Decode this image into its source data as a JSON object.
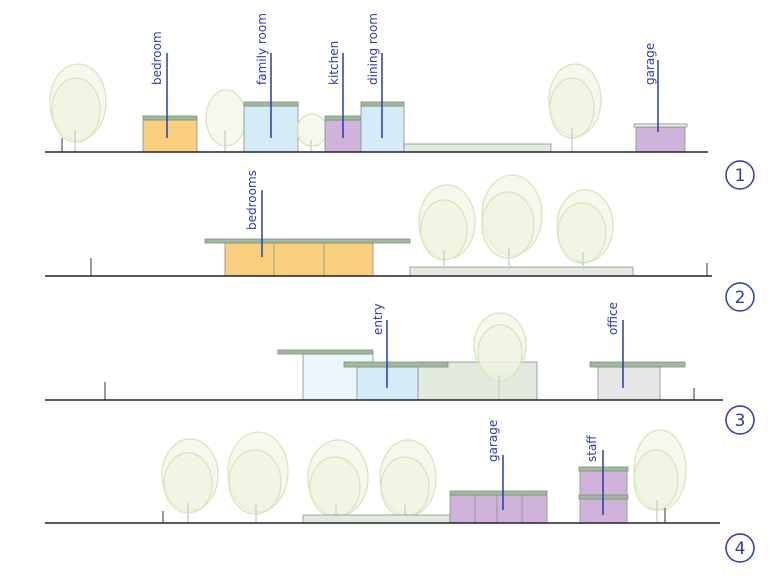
{
  "colors": {
    "label": "#2c3aa6",
    "bedroom": "#f8cf7f",
    "living": "#d5ebf7",
    "service": "#cfb3da",
    "landscape": "#e2eadf",
    "office": "#e6e6e6",
    "roof": "#9fbb9c"
  },
  "elevations": [
    {
      "number": "1",
      "labels": [
        "bedroom",
        "family room",
        "kitchen",
        "dining room",
        "garage"
      ]
    },
    {
      "number": "2",
      "labels": [
        "bedrooms"
      ]
    },
    {
      "number": "3",
      "labels": [
        "entry",
        "office"
      ]
    },
    {
      "number": "4",
      "labels": [
        "garage",
        "staff"
      ]
    }
  ]
}
